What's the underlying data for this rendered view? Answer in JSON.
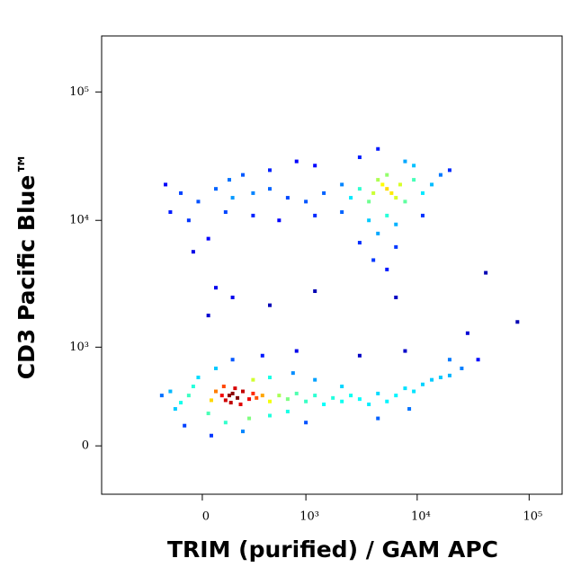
{
  "chart_data": {
    "type": "scatter",
    "x_label": "TRIM (purified) / GAM APC",
    "y_label": "CD3 Pacific Blue™",
    "xscale": "biexponential",
    "yscale": "biexponential",
    "colormap": "jet",
    "xlim": [
      -940,
      197000
    ],
    "ylim": [
      -344,
      273000
    ],
    "xticks": [
      0,
      {
        "value": 1000,
        "label": "10³"
      },
      {
        "value": 10000,
        "label": "10⁴"
      },
      {
        "value": 100000,
        "label": "10⁵"
      }
    ],
    "yticks": [
      0,
      {
        "value": 1000,
        "label": "10³"
      },
      {
        "value": 10000,
        "label": "10⁴"
      },
      {
        "value": 100000,
        "label": "10⁵"
      }
    ],
    "x": [
      141,
      160,
      190,
      225,
      120,
      100,
      270,
      300,
      328,
      175,
      150,
      210,
      380,
      68,
      45,
      110,
      453,
      560,
      677,
      820,
      1000,
      1210,
      1458,
      1760,
      2120,
      2550,
      3060,
      3700,
      4460,
      5370,
      6460,
      7800,
      9330,
      11200,
      13500,
      16200,
      19500,
      25000,
      35000,
      -68,
      -110,
      -170,
      -225,
      -141,
      -45,
      30,
      120,
      270,
      453,
      677,
      300,
      453,
      760,
      1210,
      2120,
      -20,
      68,
      160,
      380,
      820,
      3060,
      7800,
      19500,
      -90,
      45,
      225,
      1000,
      4460,
      8500,
      160,
      30,
      68,
      453,
      1210,
      6460,
      41000,
      78600,
      28200,
      5370,
      4900,
      5900,
      4460,
      6460,
      4060,
      7050,
      5370,
      3700,
      7800,
      3060,
      2550,
      2120,
      9330,
      11200,
      13500,
      16200,
      1458,
      1000,
      677,
      453,
      300,
      160,
      68,
      -20,
      -110,
      -200,
      -170,
      -68,
      120,
      300,
      560,
      1210,
      2120,
      3700,
      6460,
      11200,
      5370,
      4460,
      3060,
      6460,
      4060,
      5370,
      30,
      -45,
      453,
      1210,
      3060,
      4460,
      7800,
      9330,
      19500,
      225,
      820,
      141
    ],
    "y": [
      362,
      380,
      340,
      400,
      320,
      362,
      330,
      380,
      340,
      430,
      300,
      286,
      362,
      400,
      320,
      449,
      310,
      362,
      330,
      380,
      310,
      362,
      286,
      340,
      310,
      362,
      330,
      286,
      380,
      310,
      362,
      430,
      400,
      470,
      520,
      547,
      570,
      660,
      786,
      362,
      300,
      400,
      362,
      250,
      449,
      216,
      151,
      180,
      200,
      230,
      520,
      547,
      600,
      520,
      449,
      547,
      660,
      786,
      850,
      930,
      850,
      930,
      786,
      130,
      65,
      92,
      151,
      180,
      250,
      2500,
      1800,
      2980,
      2170,
      2800,
      2500,
      3900,
      1600,
      1300,
      17600,
      19000,
      16300,
      20700,
      15000,
      16300,
      19000,
      22600,
      14000,
      14000,
      17600,
      15000,
      19000,
      20700,
      16300,
      19000,
      22600,
      16300,
      14000,
      15000,
      17600,
      16300,
      15000,
      17600,
      14000,
      16300,
      19000,
      11600,
      10000,
      11600,
      10900,
      10000,
      10900,
      11600,
      10000,
      9300,
      10900,
      10900,
      7900,
      6700,
      6200,
      4900,
      4140,
      7200,
      5690,
      24600,
      26700,
      31000,
      36000,
      28800,
      26700,
      24600,
      22600,
      28800,
      20700
    ]
  }
}
